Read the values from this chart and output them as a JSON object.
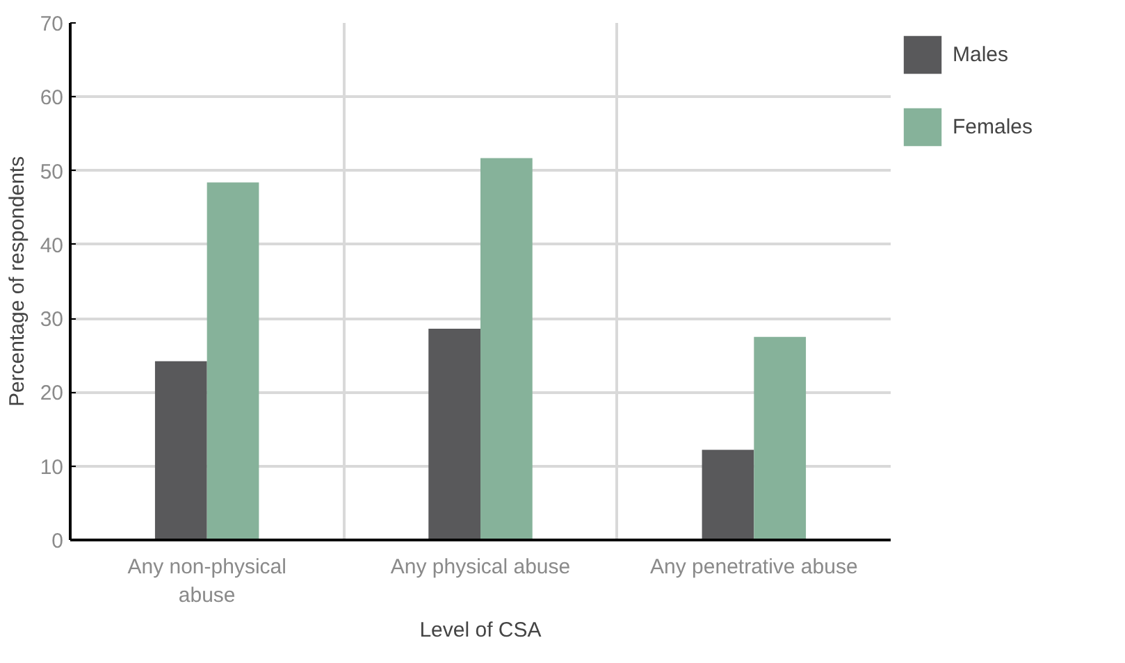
{
  "chart_data": {
    "type": "bar",
    "xlabel": "Level of CSA",
    "ylabel": "Percentage of respondents",
    "categories": [
      "Any non-physical abuse",
      "Any physical abuse",
      "Any penetrative abuse"
    ],
    "series": [
      {
        "name": "Males",
        "color": "#59595b",
        "values": [
          24.2,
          28.6,
          12.2
        ]
      },
      {
        "name": "Females",
        "color": "#86b29a",
        "values": [
          48.4,
          51.7,
          27.5
        ]
      }
    ],
    "ylim": [
      0,
      70
    ],
    "yticks": [
      0,
      10,
      20,
      30,
      40,
      50,
      60,
      70
    ],
    "grid": true,
    "legend": "top right"
  }
}
